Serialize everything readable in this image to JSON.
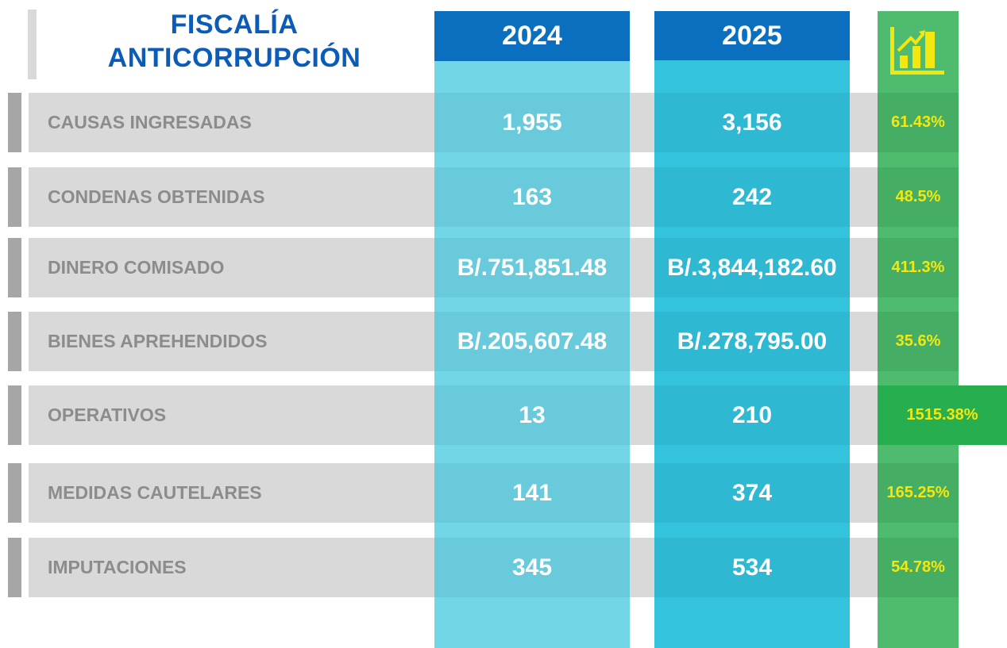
{
  "header": {
    "title_lines": [
      "FISCALÍA",
      "ANTICORRUPCIÓN"
    ],
    "columns": [
      "2024",
      "2025"
    ]
  },
  "table": {
    "rows": [
      {
        "label": "CAUSAS INGRESADAS",
        "y2024": "1,955",
        "y2025": "3,156",
        "change": "61.43%"
      },
      {
        "label": "CONDENAS OBTENIDAS",
        "y2024": "163",
        "y2025": "242",
        "change": "48.5%"
      },
      {
        "label": "DINERO COMISADO",
        "y2024": "B/.751,851.48",
        "y2025": "B/.3,844,182.60",
        "change": "411.3%"
      },
      {
        "label": "BIENES APREHENDIDOS",
        "y2024": "B/.205,607.48",
        "y2025": "B/.278,795.00",
        "change": "35.6%"
      },
      {
        "label": "OPERATIVOS",
        "y2024": "13",
        "y2025": "210",
        "change": "1515.38%"
      },
      {
        "label": "MEDIDAS CAUTELARES",
        "y2024": "141",
        "y2025": "374",
        "change": "165.25%"
      },
      {
        "label": "IMPUTACIONES",
        "y2024": "345",
        "y2025": "534",
        "change": "54.78%"
      }
    ]
  }
}
